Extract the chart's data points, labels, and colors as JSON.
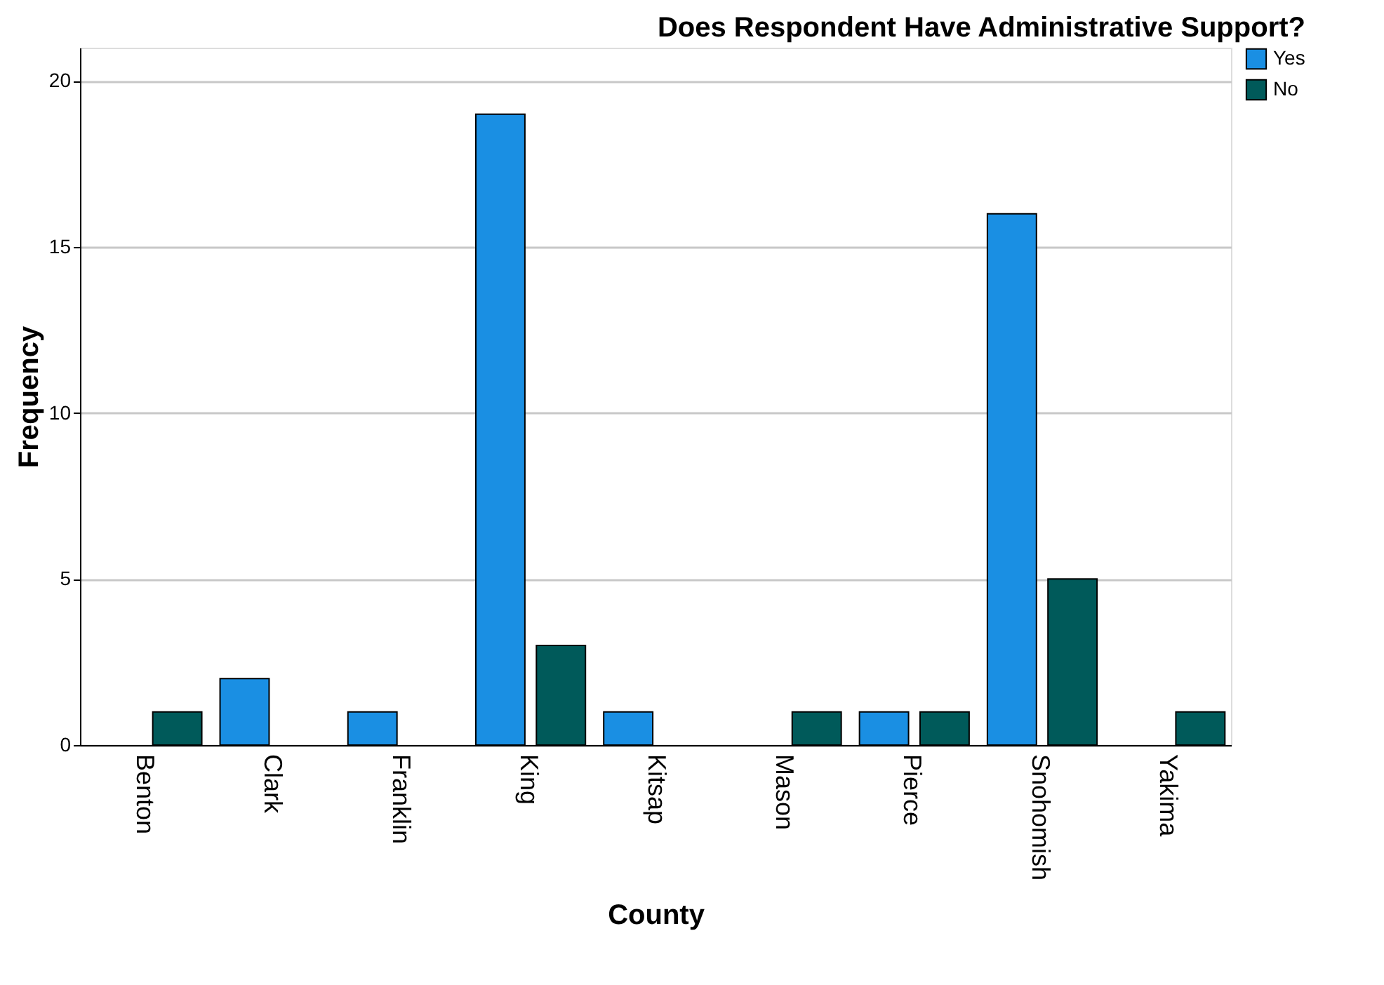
{
  "chart_data": {
    "type": "bar",
    "title": "Does Respondent Have Administrative Support?",
    "xlabel": "County",
    "ylabel": "Frequency",
    "categories": [
      "Benton",
      "Clark",
      "Franklin",
      "King",
      "Kitsap",
      "Mason",
      "Pierce",
      "Snohomish",
      "Yakima"
    ],
    "series": [
      {
        "name": "Yes",
        "color": "#1a8fe3",
        "values": [
          null,
          2,
          1,
          19,
          1,
          null,
          1,
          16,
          null
        ]
      },
      {
        "name": "No",
        "color": "#005a5a",
        "values": [
          1,
          null,
          null,
          3,
          null,
          1,
          1,
          5,
          1
        ]
      }
    ],
    "ylim": [
      0,
      21
    ],
    "yticks": [
      0,
      5,
      10,
      15,
      20
    ],
    "grid": "y",
    "legend": "top right"
  }
}
